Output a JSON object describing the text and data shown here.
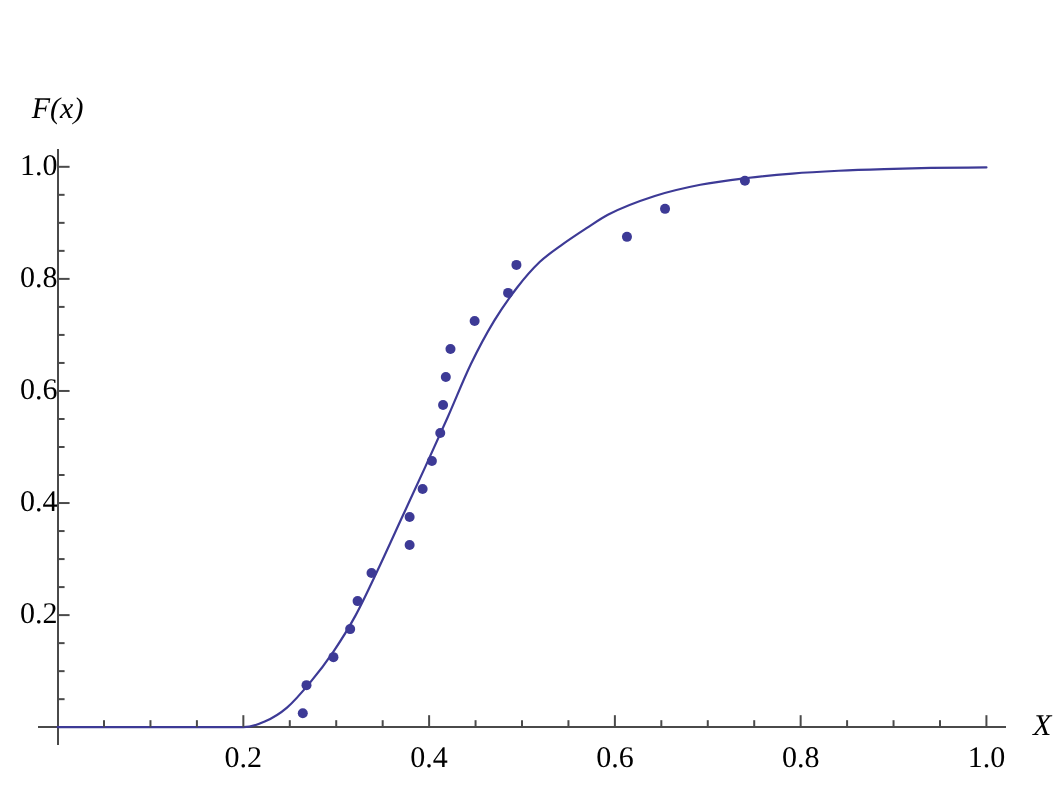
{
  "chart_data": {
    "type": "scatter",
    "xlabel": "X",
    "ylabel": "F(x)",
    "xlim": [
      -0.02,
      1.02
    ],
    "ylim": [
      -0.03,
      1.03
    ],
    "xticks": [
      {
        "value": 0.05,
        "label": null
      },
      {
        "value": 0.1,
        "label": null
      },
      {
        "value": 0.15,
        "label": null
      },
      0.2,
      {
        "value": 0.25,
        "label": null
      },
      {
        "value": 0.3,
        "label": null
      },
      {
        "value": 0.35,
        "label": null
      },
      0.4,
      {
        "value": 0.45,
        "label": null
      },
      {
        "value": 0.5,
        "label": null
      },
      {
        "value": 0.55,
        "label": null
      },
      0.6,
      {
        "value": 0.65,
        "label": null
      },
      {
        "value": 0.7,
        "label": null
      },
      {
        "value": 0.75,
        "label": null
      },
      0.8,
      {
        "value": 0.85,
        "label": null
      },
      {
        "value": 0.9,
        "label": null
      },
      {
        "value": 0.95,
        "label": null
      },
      {
        "value": 1,
        "label": "1.0"
      }
    ],
    "yticks": [
      {
        "value": 0.05,
        "label": null
      },
      {
        "value": 0.1,
        "label": null
      },
      {
        "value": 0.15,
        "label": null
      },
      0.2,
      {
        "value": 0.25,
        "label": null
      },
      {
        "value": 0.3,
        "label": null
      },
      {
        "value": 0.35,
        "label": null
      },
      0.4,
      {
        "value": 0.45,
        "label": null
      },
      {
        "value": 0.5,
        "label": null
      },
      {
        "value": 0.55,
        "label": null
      },
      0.6,
      {
        "value": 0.65,
        "label": null
      },
      {
        "value": 0.7,
        "label": null
      },
      {
        "value": 0.75,
        "label": null
      },
      0.8,
      {
        "value": 0.85,
        "label": null
      },
      {
        "value": 0.9,
        "label": null
      },
      {
        "value": 0.95,
        "label": null
      },
      {
        "value": 1,
        "label": "1.0"
      }
    ],
    "grid": false,
    "legend": false,
    "series": [
      {
        "type": "scatter",
        "color": "#3d3a96",
        "marker": "circle",
        "x": [
          0.264,
          0.268,
          0.297,
          0.315,
          0.323,
          0.338,
          0.379,
          0.379,
          0.393,
          0.403,
          0.412,
          0.415,
          0.418,
          0.423,
          0.449,
          0.485,
          0.494,
          0.613,
          0.654,
          0.74
        ],
        "values": [
          0.025,
          0.075,
          0.125,
          0.175,
          0.225,
          0.275,
          0.325,
          0.375,
          0.425,
          0.475,
          0.525,
          0.575,
          0.625,
          0.675,
          0.725,
          0.775,
          0.825,
          0.875,
          0.925,
          0.975
        ]
      },
      {
        "type": "line",
        "color": "#3d3a96",
        "marker": "none",
        "line_style": "solid",
        "x": [
          0,
          0.2,
          0.223,
          0.247,
          0.272,
          0.297,
          0.321,
          0.346,
          0.371,
          0.396,
          0.42,
          0.445,
          0.47,
          0.495,
          0.519,
          0.544,
          0.569,
          0.593,
          0.643,
          0.692,
          0.742,
          0.791,
          0.841,
          0.89,
          0.94,
          1.0
        ],
        "values": [
          0,
          0,
          0.01,
          0.035,
          0.08,
          0.135,
          0.2,
          0.285,
          0.375,
          0.465,
          0.553,
          0.648,
          0.725,
          0.785,
          0.83,
          0.862,
          0.89,
          0.915,
          0.948,
          0.968,
          0.98,
          0.988,
          0.993,
          0.996,
          0.998,
          0.999
        ]
      }
    ]
  }
}
